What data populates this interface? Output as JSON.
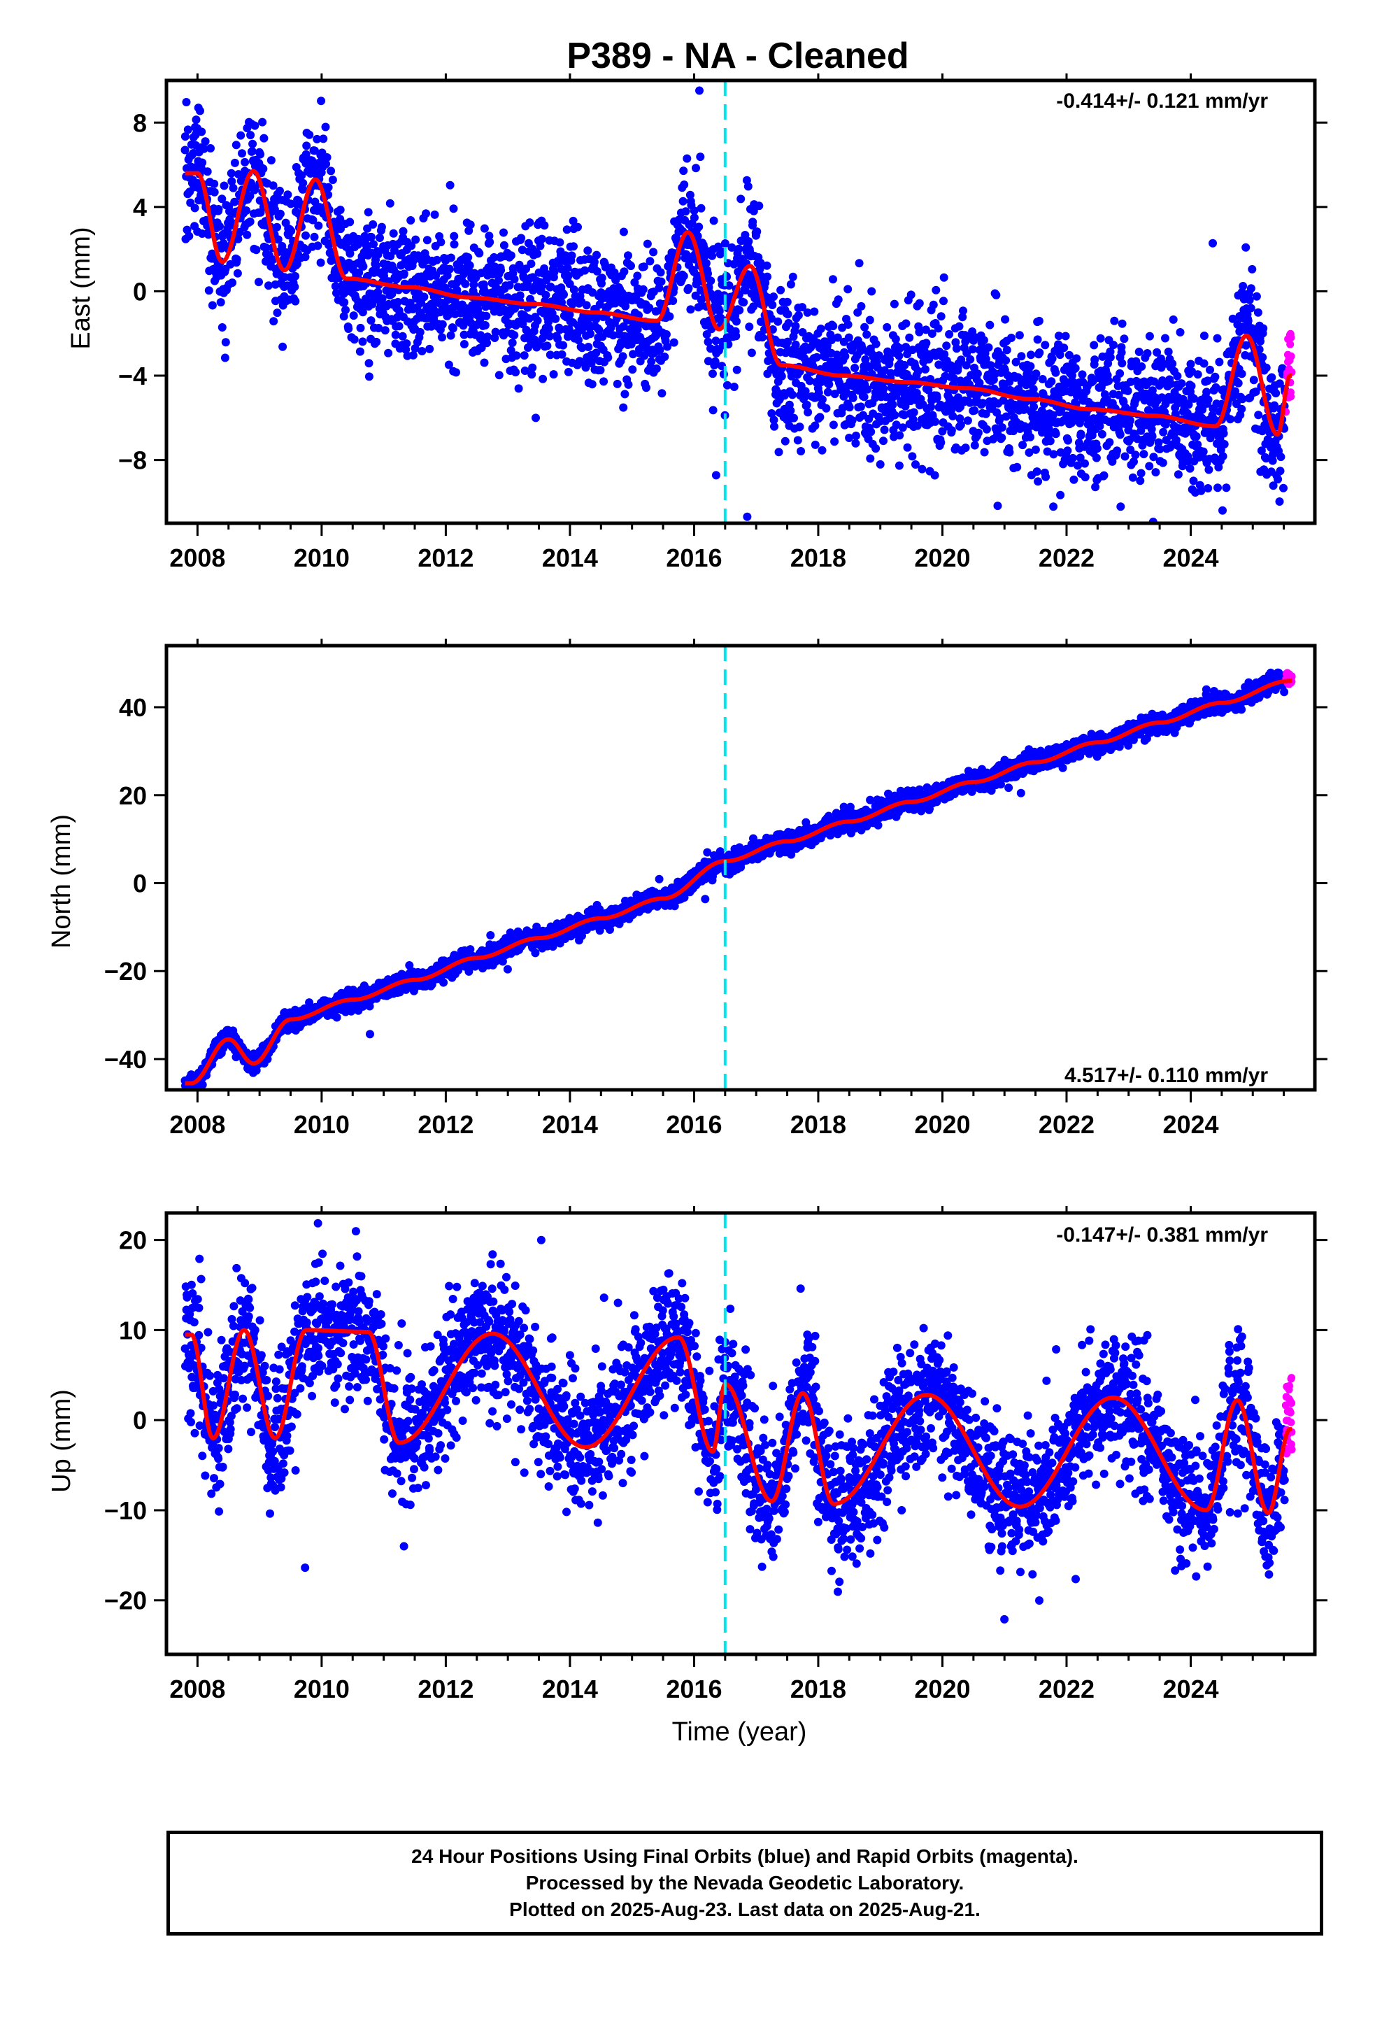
{
  "title": "P389  - NA - Cleaned",
  "xlabel": "Time (year)",
  "footer": {
    "line1": "24 Hour Positions Using Final Orbits (blue) and Rapid Orbits (magenta).",
    "line2": "Processed by the Nevada Geodetic Laboratory.",
    "line3": "Plotted on 2025-Aug-23. Last data on 2025-Aug-21."
  },
  "colors": {
    "final_orbits": "#0000ff",
    "rapid_orbits": "#ff00ff",
    "model_fit": "#ff0000",
    "event_line": "#00e5ee"
  },
  "chart_data": [
    {
      "type": "scatter",
      "name": "east",
      "ylabel": "East (mm)",
      "rate": "-0.414+/- 0.121 mm/yr",
      "rate_placement": "top-right",
      "xlim": [
        2007.5,
        2026.0
      ],
      "ylim": [
        -11,
        10
      ],
      "xticks": [
        2008,
        2010,
        2012,
        2014,
        2016,
        2018,
        2020,
        2022,
        2024
      ],
      "xtick_labels": [
        "2008",
        "2010",
        "2012",
        "2014",
        "2016",
        "2018",
        "2020",
        "2022",
        "2024"
      ],
      "yticks": [
        -8,
        -4,
        0,
        4,
        8
      ],
      "ytick_labels": [
        "−8",
        "−4",
        "0",
        "4",
        "8"
      ],
      "event_x": 2016.5,
      "data_range": [
        2007.8,
        2025.63
      ],
      "rapid_range": [
        2025.5,
        2025.63
      ],
      "model": {
        "offset_at_2008": 3.4,
        "trend": -0.414,
        "amplitude": 2.3,
        "peak_phase": 0.92,
        "noise": 1.6
      },
      "key_points": [
        {
          "x": 2008.0,
          "y": 5.6
        },
        {
          "x": 2008.4,
          "y": 1.4
        },
        {
          "x": 2008.9,
          "y": 5.7
        },
        {
          "x": 2009.4,
          "y": 1.0
        },
        {
          "x": 2009.9,
          "y": 5.3
        },
        {
          "x": 2010.4,
          "y": 0.6
        },
        {
          "x": 2011.4,
          "y": 0.2
        },
        {
          "x": 2012.4,
          "y": -0.3
        },
        {
          "x": 2013.4,
          "y": -0.6
        },
        {
          "x": 2014.4,
          "y": -1.0
        },
        {
          "x": 2015.4,
          "y": -1.4
        },
        {
          "x": 2015.9,
          "y": 2.8
        },
        {
          "x": 2016.4,
          "y": -1.8
        },
        {
          "x": 2016.9,
          "y": 1.2
        },
        {
          "x": 2017.4,
          "y": -3.5
        },
        {
          "x": 2018.4,
          "y": -4.0
        },
        {
          "x": 2019.4,
          "y": -4.3
        },
        {
          "x": 2020.4,
          "y": -4.6
        },
        {
          "x": 2021.4,
          "y": -5.1
        },
        {
          "x": 2022.4,
          "y": -5.6
        },
        {
          "x": 2023.4,
          "y": -5.9
        },
        {
          "x": 2024.4,
          "y": -6.4
        },
        {
          "x": 2024.9,
          "y": -2.1
        },
        {
          "x": 2025.4,
          "y": -6.8
        },
        {
          "x": 2025.6,
          "y": -4.0
        }
      ]
    },
    {
      "type": "scatter",
      "name": "north",
      "ylabel": "North (mm)",
      "rate": "4.517+/- 0.110 mm/yr",
      "rate_placement": "bottom-right",
      "xlim": [
        2007.5,
        2026.0
      ],
      "ylim": [
        -47,
        54
      ],
      "xticks": [
        2008,
        2010,
        2012,
        2014,
        2016,
        2018,
        2020,
        2022,
        2024
      ],
      "xtick_labels": [
        "2008",
        "2010",
        "2012",
        "2014",
        "2016",
        "2018",
        "2020",
        "2022",
        "2024"
      ],
      "yticks": [
        -40,
        -20,
        0,
        20,
        40
      ],
      "ytick_labels": [
        "−40",
        "−20",
        "0",
        "20",
        "40"
      ],
      "event_x": 2016.5,
      "data_range": [
        2007.8,
        2025.63
      ],
      "rapid_range": [
        2025.5,
        2025.63
      ],
      "model": {
        "offset_at_2008": -42.5,
        "trend": 4.517,
        "amplitude": 2.2,
        "peak_phase": 0.5,
        "noise": 1.1
      },
      "key_points": [
        {
          "x": 2007.9,
          "y": -45.5
        },
        {
          "x": 2008.5,
          "y": -35.5
        },
        {
          "x": 2008.9,
          "y": -41.0
        },
        {
          "x": 2009.5,
          "y": -31.0
        },
        {
          "x": 2010.5,
          "y": -26.5
        },
        {
          "x": 2011.5,
          "y": -22.0
        },
        {
          "x": 2012.5,
          "y": -17.0
        },
        {
          "x": 2013.5,
          "y": -12.5
        },
        {
          "x": 2014.5,
          "y": -8.0
        },
        {
          "x": 2015.5,
          "y": -3.5
        },
        {
          "x": 2016.5,
          "y": 5.0
        },
        {
          "x": 2017.5,
          "y": 9.5
        },
        {
          "x": 2018.5,
          "y": 14.0
        },
        {
          "x": 2019.5,
          "y": 18.5
        },
        {
          "x": 2020.5,
          "y": 23.0
        },
        {
          "x": 2021.5,
          "y": 27.5
        },
        {
          "x": 2022.5,
          "y": 32.0
        },
        {
          "x": 2023.5,
          "y": 36.5
        },
        {
          "x": 2024.5,
          "y": 41.0
        },
        {
          "x": 2025.6,
          "y": 46.0
        }
      ]
    },
    {
      "type": "scatter",
      "name": "up",
      "ylabel": "Up (mm)",
      "rate": "-0.147+/- 0.381 mm/yr",
      "rate_placement": "top-right",
      "xlim": [
        2007.5,
        2026.0
      ],
      "ylim": [
        -26,
        23
      ],
      "xticks": [
        2008,
        2010,
        2012,
        2014,
        2016,
        2018,
        2020,
        2022,
        2024
      ],
      "xtick_labels": [
        "2008",
        "2010",
        "2012",
        "2014",
        "2016",
        "2018",
        "2020",
        "2022",
        "2024"
      ],
      "yticks": [
        -20,
        -10,
        0,
        10,
        20
      ],
      "ytick_labels": [
        "−20",
        "−10",
        "0",
        "10",
        "20"
      ],
      "event_x": 2016.5,
      "data_range": [
        2007.8,
        2025.63
      ],
      "rapid_range": [
        2025.5,
        2025.63
      ],
      "model": {
        "offset_at_2008": 3.5,
        "trend": -0.147,
        "amplitude": 6.2,
        "peak_phase": 0.75,
        "noise": 3.6
      },
      "key_points": [
        {
          "x": 2007.9,
          "y": 9.5
        },
        {
          "x": 2008.25,
          "y": -2.0
        },
        {
          "x": 2008.75,
          "y": 10.0
        },
        {
          "x": 2009.25,
          "y": -2.0
        },
        {
          "x": 2009.75,
          "y": 10.0
        },
        {
          "x": 2010.75,
          "y": 9.8
        },
        {
          "x": 2011.25,
          "y": -2.5
        },
        {
          "x": 2012.75,
          "y": 9.6
        },
        {
          "x": 2014.25,
          "y": -3.0
        },
        {
          "x": 2015.75,
          "y": 9.2
        },
        {
          "x": 2016.3,
          "y": -3.5
        },
        {
          "x": 2016.5,
          "y": 4.0
        },
        {
          "x": 2017.25,
          "y": -9.0
        },
        {
          "x": 2017.75,
          "y": 3.0
        },
        {
          "x": 2018.25,
          "y": -9.3
        },
        {
          "x": 2019.75,
          "y": 2.8
        },
        {
          "x": 2021.25,
          "y": -9.6
        },
        {
          "x": 2022.75,
          "y": 2.5
        },
        {
          "x": 2024.25,
          "y": -10.0
        },
        {
          "x": 2024.75,
          "y": 2.2
        },
        {
          "x": 2025.25,
          "y": -10.3
        },
        {
          "x": 2025.6,
          "y": -1.0
        }
      ]
    }
  ]
}
